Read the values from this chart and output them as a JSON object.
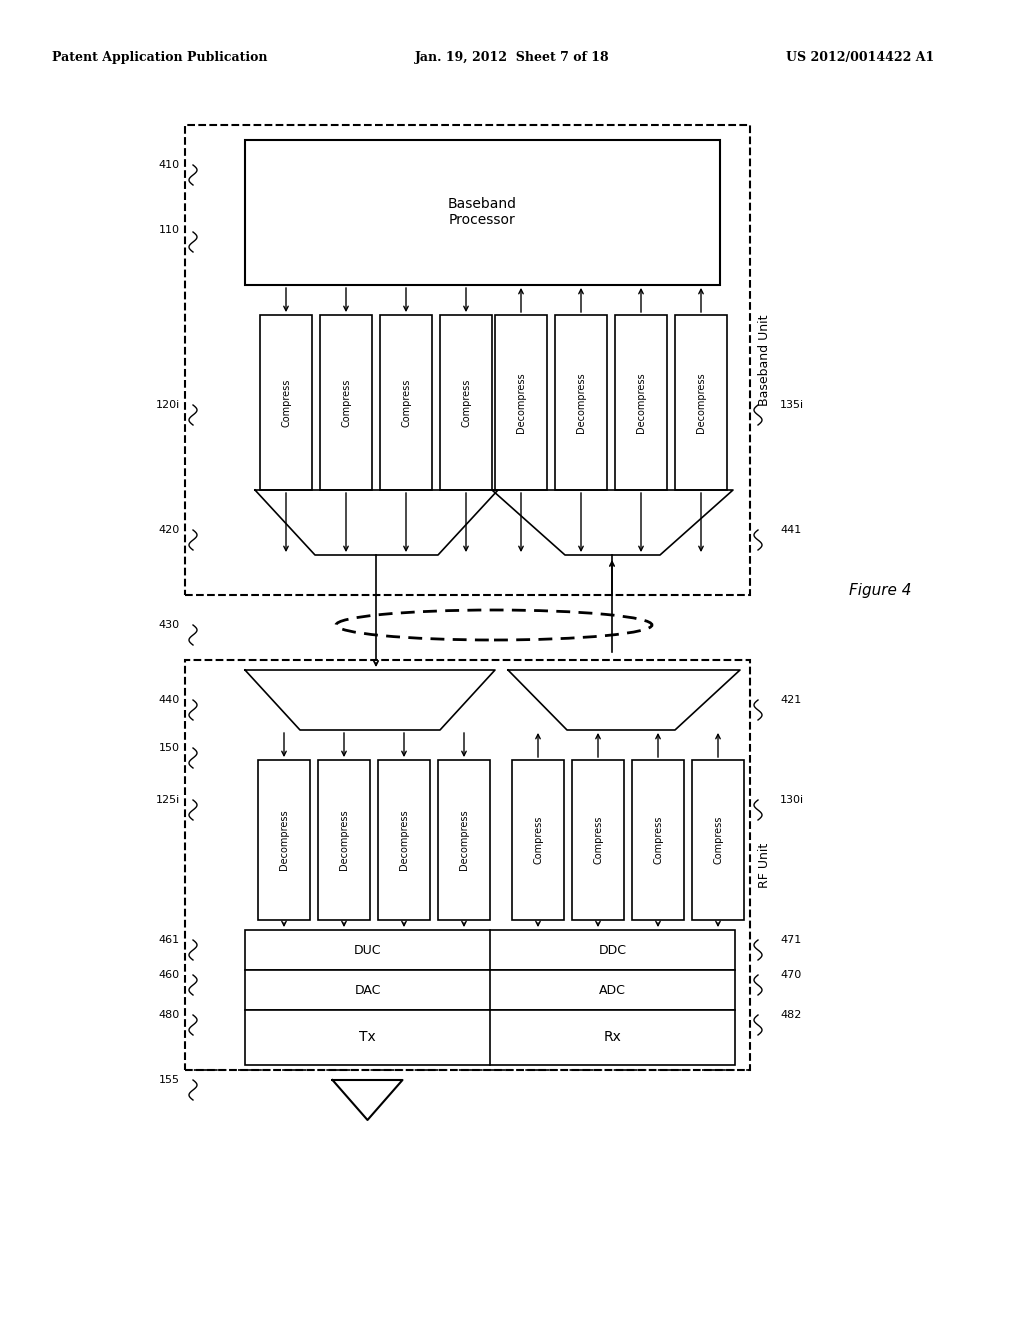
{
  "title_left": "Patent Application Publication",
  "title_mid": "Jan. 19, 2012  Sheet 7 of 18",
  "title_right": "US 2012/0014422 A1",
  "figure_label": "Figure 4",
  "bg_color": "#ffffff"
}
